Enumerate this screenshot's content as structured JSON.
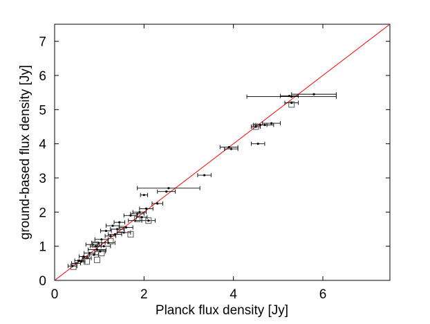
{
  "chart_data": {
    "type": "scatter",
    "title": "",
    "xlabel": "Planck flux density [Jy]",
    "ylabel": "ground-based flux density [Jy]",
    "xlim": [
      0,
      7.5
    ],
    "ylim": [
      0,
      7.5
    ],
    "xticks": [
      0,
      2,
      4,
      6
    ],
    "yticks": [
      0,
      1,
      2,
      3,
      4,
      5,
      6,
      7
    ],
    "grid": false,
    "legend": "none",
    "reference_line": {
      "type": "y = x",
      "color": "#ff0000"
    },
    "colors": {
      "points": "#000000",
      "squares": "#555555",
      "line": "#ff0000"
    },
    "series": [
      {
        "marker": "dot",
        "points": [
          {
            "x": 0.4,
            "y": 0.42,
            "xerr": 0.1
          },
          {
            "x": 0.48,
            "y": 0.5,
            "xerr": 0.1
          },
          {
            "x": 0.55,
            "y": 0.58,
            "xerr": 0.1
          },
          {
            "x": 0.6,
            "y": 0.55,
            "xerr": 0.08
          },
          {
            "x": 0.65,
            "y": 0.7,
            "xerr": 0.1
          },
          {
            "x": 0.72,
            "y": 0.65,
            "xerr": 0.1
          },
          {
            "x": 0.78,
            "y": 0.8,
            "xerr": 0.12
          },
          {
            "x": 0.85,
            "y": 1.05,
            "xerr": 0.15
          },
          {
            "x": 0.88,
            "y": 0.75,
            "xerr": 0.1
          },
          {
            "x": 0.92,
            "y": 1.0,
            "xerr": 0.12
          },
          {
            "x": 0.95,
            "y": 0.9,
            "xerr": 0.2
          },
          {
            "x": 0.98,
            "y": 1.1,
            "xerr": 0.15
          },
          {
            "x": 1.02,
            "y": 0.85,
            "xerr": 0.12
          },
          {
            "x": 1.05,
            "y": 1.2,
            "xerr": 0.15
          },
          {
            "x": 1.1,
            "y": 1.0,
            "xerr": 0.15
          },
          {
            "x": 1.15,
            "y": 1.45,
            "xerr": 0.12
          },
          {
            "x": 1.2,
            "y": 1.1,
            "xerr": 0.15
          },
          {
            "x": 1.25,
            "y": 1.3,
            "xerr": 0.12
          },
          {
            "x": 1.3,
            "y": 1.6,
            "xerr": 0.15
          },
          {
            "x": 1.35,
            "y": 1.35,
            "xerr": 0.15
          },
          {
            "x": 1.4,
            "y": 1.5,
            "xerr": 0.15
          },
          {
            "x": 1.45,
            "y": 1.7,
            "xerr": 0.12
          },
          {
            "x": 1.55,
            "y": 1.4,
            "xerr": 0.15
          },
          {
            "x": 1.6,
            "y": 1.55,
            "xerr": 0.15
          },
          {
            "x": 1.7,
            "y": 1.9,
            "xerr": 0.15
          },
          {
            "x": 1.8,
            "y": 1.75,
            "xerr": 0.15
          },
          {
            "x": 1.85,
            "y": 1.95,
            "xerr": 0.15
          },
          {
            "x": 1.9,
            "y": 2.0,
            "xerr": 0.15
          },
          {
            "x": 1.95,
            "y": 1.85,
            "xerr": 0.12
          },
          {
            "x": 2.05,
            "y": 2.1,
            "xerr": 0.15
          },
          {
            "x": 2.1,
            "y": 1.75,
            "xerr": 0.15
          },
          {
            "x": 2.0,
            "y": 2.5,
            "xerr": 0.08
          },
          {
            "x": 2.3,
            "y": 2.25,
            "xerr": 0.12
          },
          {
            "x": 2.5,
            "y": 2.6,
            "xerr": 0.2
          },
          {
            "x": 2.55,
            "y": 2.7,
            "xerr": 0.7
          },
          {
            "x": 3.35,
            "y": 3.08,
            "xerr": 0.15
          },
          {
            "x": 3.95,
            "y": 3.85,
            "xerr": 0.15
          },
          {
            "x": 3.9,
            "y": 3.9,
            "xerr": 0.2
          },
          {
            "x": 4.55,
            "y": 4.0,
            "xerr": 0.15
          },
          {
            "x": 4.5,
            "y": 4.5,
            "xerr": 0.1
          },
          {
            "x": 4.6,
            "y": 4.55,
            "xerr": 0.15
          },
          {
            "x": 4.7,
            "y": 4.55,
            "xerr": 0.2
          },
          {
            "x": 4.85,
            "y": 4.6,
            "xerr": 0.2
          },
          {
            "x": 5.3,
            "y": 5.2,
            "xerr": 0.15
          },
          {
            "x": 5.25,
            "y": 5.4,
            "xerr": 0.2
          },
          {
            "x": 5.3,
            "y": 5.38,
            "xerr": 1.0
          },
          {
            "x": 5.8,
            "y": 5.45,
            "xerr": 0.5
          }
        ]
      },
      {
        "marker": "square",
        "points": [
          {
            "x": 0.42,
            "y": 0.4
          },
          {
            "x": 0.72,
            "y": 0.55
          },
          {
            "x": 0.95,
            "y": 0.6
          },
          {
            "x": 1.05,
            "y": 0.8
          },
          {
            "x": 0.9,
            "y": 1.05
          },
          {
            "x": 1.25,
            "y": 1.15
          },
          {
            "x": 1.5,
            "y": 1.5
          },
          {
            "x": 1.7,
            "y": 1.35
          },
          {
            "x": 1.85,
            "y": 1.8
          },
          {
            "x": 2.1,
            "y": 1.75
          },
          {
            "x": 4.5,
            "y": 4.5
          },
          {
            "x": 5.3,
            "y": 5.15
          }
        ]
      }
    ]
  }
}
